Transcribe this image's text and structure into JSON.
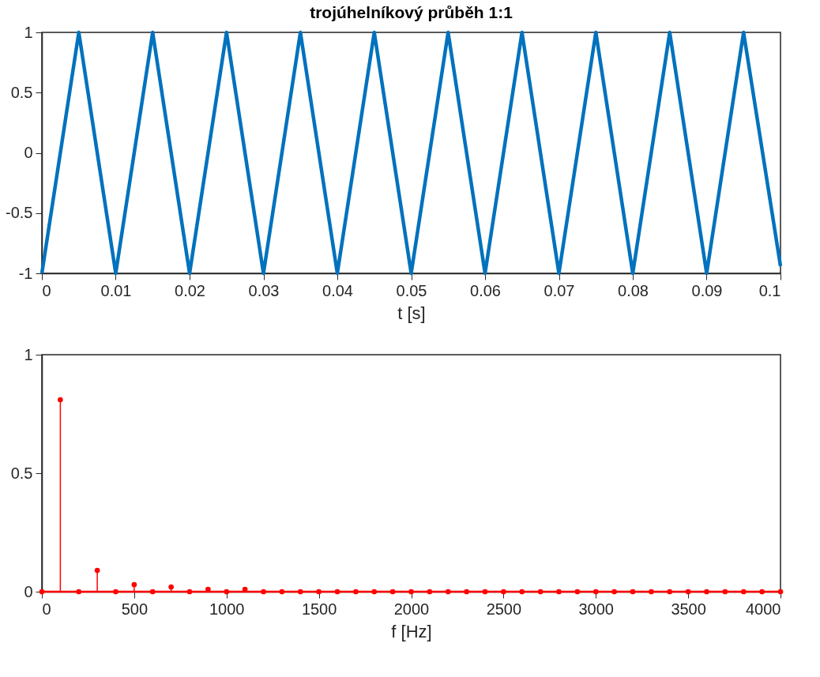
{
  "chart_data": [
    {
      "type": "line",
      "title": "trojúhelníkový průběh 1:1",
      "xlabel": "t [s]",
      "x": [
        0,
        0.005,
        0.01,
        0.015,
        0.02,
        0.025,
        0.03,
        0.035,
        0.04,
        0.045,
        0.05,
        0.055,
        0.06,
        0.065,
        0.07,
        0.075,
        0.08,
        0.085,
        0.09,
        0.095,
        0.1
      ],
      "series": [
        {
          "color": "#0072bd",
          "values": [
            -1,
            1,
            -1,
            1,
            -1,
            1,
            -1,
            1,
            -1,
            1,
            -1,
            1,
            -1,
            1,
            -1,
            1,
            -1,
            1,
            -1,
            1,
            -0.94
          ]
        }
      ],
      "xlim": [
        0,
        0.1
      ],
      "xticks": [
        0,
        0.01,
        0.02,
        0.03,
        0.04,
        0.05,
        0.06,
        0.07,
        0.08,
        0.09,
        0.1
      ],
      "ylim": [
        -1,
        1
      ],
      "yticks": [
        -1,
        -0.5,
        0,
        0.5,
        1
      ]
    },
    {
      "type": "lollipop",
      "xlabel": "f [Hz]",
      "marker": "circle",
      "x": [
        0,
        100,
        200,
        300,
        400,
        500,
        600,
        700,
        800,
        900,
        1000,
        1100,
        1200,
        1300,
        1400,
        1500,
        1600,
        1700,
        1800,
        1900,
        2000,
        2100,
        2200,
        2300,
        2400,
        2500,
        2600,
        2700,
        2800,
        2900,
        3000,
        3100,
        3200,
        3300,
        3400,
        3500,
        3600,
        3700,
        3800,
        3900,
        4000
      ],
      "series": [
        {
          "color": "#ff0000",
          "values": [
            0,
            0.81,
            0,
            0.09,
            0,
            0.03,
            0,
            0.02,
            0,
            0.01,
            0,
            0.01,
            0,
            0,
            0,
            0,
            0,
            0,
            0,
            0,
            0,
            0,
            0,
            0,
            0,
            0,
            0,
            0,
            0,
            0,
            0,
            0,
            0,
            0,
            0,
            0,
            0,
            0,
            0,
            0,
            0
          ]
        }
      ],
      "xlim": [
        0,
        4000
      ],
      "xticks": [
        0,
        500,
        1000,
        1500,
        2000,
        2500,
        3000,
        3500,
        4000
      ],
      "ylim": [
        0,
        1
      ],
      "yticks": [
        0,
        0.5,
        1
      ]
    }
  ]
}
